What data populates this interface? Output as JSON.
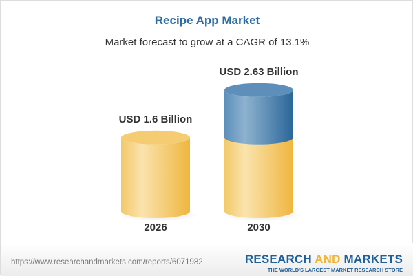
{
  "chart_data": {
    "type": "bar",
    "title": "Recipe App Market",
    "subtitle": "Market forecast to grow at a CAGR of 13.1%",
    "categories": [
      "2026",
      "2030"
    ],
    "values": [
      1.6,
      2.63
    ],
    "data_labels": [
      "USD 1.6 Billion",
      "USD 2.63 Billion"
    ],
    "style": "3d-cylinder",
    "colors": {
      "base": "#f2c14e",
      "growth": "#3f7fb0"
    }
  },
  "footer": {
    "url": "https://www.researchandmarkets.com/reports/6071982",
    "brand_part1": "RESEARCH ",
    "brand_part2": "AND",
    "brand_part3": " MARKETS",
    "tagline": "THE WORLD'S LARGEST MARKET RESEARCH STORE"
  }
}
